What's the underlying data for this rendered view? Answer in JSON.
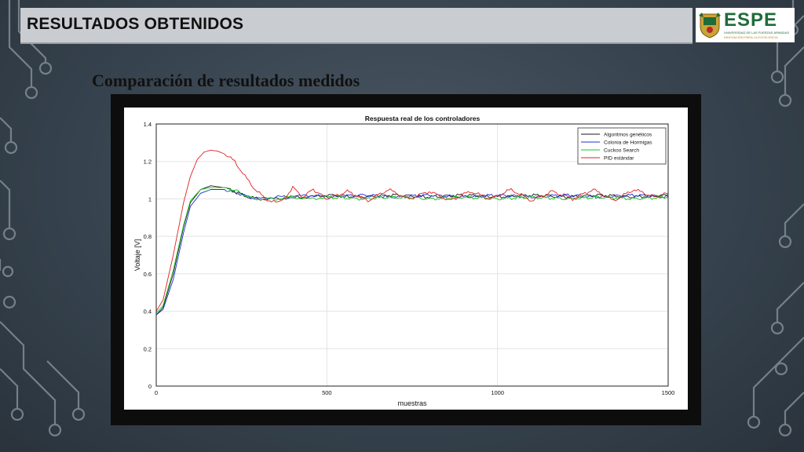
{
  "header": {
    "title": "RESULTADOS OBTENIDOS"
  },
  "logo": {
    "word": "ESPE",
    "line1": "UNIVERSIDAD DE LAS FUERZAS ARMADAS",
    "line2": "INNOVACIÓN PARA LA EXCELENCIA",
    "icon": "university-crest-icon"
  },
  "slide": {
    "subtitle": "Comparación de resultados medidos"
  },
  "chart_data": {
    "type": "line",
    "title": "Respuesta real de los controladores",
    "xlabel": "muestras",
    "ylabel": "Voltaje [V]",
    "xlim": [
      0,
      1500
    ],
    "ylim": [
      0,
      1.4
    ],
    "xticks": [
      0,
      500,
      1000,
      1500
    ],
    "yticks": [
      0,
      0.2,
      0.4,
      0.6,
      0.8,
      1,
      1.2,
      1.4
    ],
    "ytick_labels": [
      "0",
      "0.2",
      "0.4",
      "0.6",
      "0.8",
      "1",
      "1.2",
      "1.4"
    ],
    "grid": true,
    "legend_position": "top-right",
    "series": [
      {
        "name": "Algoritmos genéticos",
        "color": "#1a1a1a",
        "x": [
          0,
          20,
          50,
          80,
          100,
          130,
          160,
          200,
          240,
          270,
          300,
          350,
          400,
          450,
          500,
          600,
          700,
          800,
          900,
          1000,
          1100,
          1200,
          1300,
          1400,
          1500
        ],
        "y": [
          0.38,
          0.42,
          0.6,
          0.85,
          0.98,
          1.05,
          1.07,
          1.06,
          1.03,
          1.01,
          1.0,
          1.0,
          1.01,
          1.01,
          1.02,
          1.01,
          1.02,
          1.01,
          1.02,
          1.01,
          1.02,
          1.01,
          1.02,
          1.01,
          1.02
        ]
      },
      {
        "name": "Colonia de Hormigas",
        "color": "#1f2fd0",
        "x": [
          0,
          20,
          50,
          80,
          100,
          130,
          160,
          200,
          240,
          270,
          300,
          350,
          400,
          450,
          500,
          600,
          700,
          800,
          900,
          1000,
          1100,
          1200,
          1300,
          1400,
          1500
        ],
        "y": [
          0.38,
          0.41,
          0.57,
          0.82,
          0.96,
          1.03,
          1.05,
          1.05,
          1.03,
          1.01,
          1.0,
          1.01,
          1.01,
          1.02,
          1.01,
          1.02,
          1.01,
          1.02,
          1.01,
          1.02,
          1.01,
          1.02,
          1.01,
          1.02,
          1.01
        ]
      },
      {
        "name": "Cuckoo Search",
        "color": "#18c418",
        "x": [
          0,
          20,
          50,
          80,
          100,
          130,
          160,
          200,
          240,
          270,
          300,
          350,
          400,
          450,
          500,
          600,
          700,
          800,
          900,
          1000,
          1100,
          1200,
          1300,
          1400,
          1500
        ],
        "y": [
          0.39,
          0.43,
          0.62,
          0.86,
          0.99,
          1.05,
          1.06,
          1.06,
          1.04,
          1.01,
          1.0,
          1.0,
          1.01,
          1.0,
          1.01,
          1.0,
          1.01,
          1.0,
          1.01,
          1.0,
          1.01,
          1.0,
          1.01,
          1.0,
          1.01
        ]
      },
      {
        "name": "PID estándar",
        "color": "#e02020",
        "x": [
          0,
          20,
          50,
          80,
          100,
          120,
          140,
          160,
          180,
          200,
          230,
          260,
          290,
          320,
          350,
          370,
          400,
          430,
          460,
          500,
          560,
          620,
          680,
          740,
          800,
          860,
          920,
          980,
          1040,
          1100,
          1160,
          1220,
          1280,
          1340,
          1400,
          1460,
          1500
        ],
        "y": [
          0.4,
          0.46,
          0.7,
          0.98,
          1.12,
          1.21,
          1.25,
          1.26,
          1.255,
          1.24,
          1.2,
          1.12,
          1.05,
          1.0,
          0.98,
          0.99,
          1.06,
          1.01,
          1.05,
          1.0,
          1.04,
          0.99,
          1.05,
          1.0,
          1.04,
          0.99,
          1.04,
          1.0,
          1.05,
          0.99,
          1.04,
          1.0,
          1.05,
          0.99,
          1.05,
          1.01,
          1.03
        ]
      }
    ]
  }
}
